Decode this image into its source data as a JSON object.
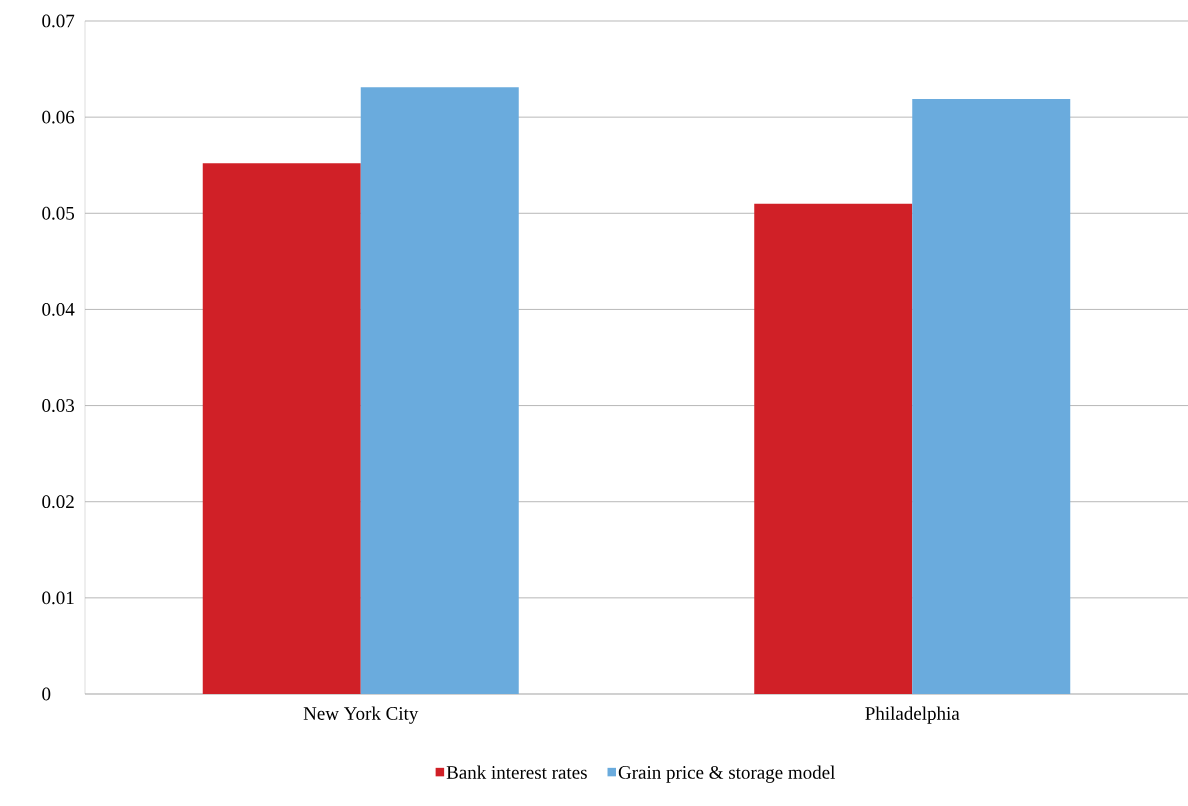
{
  "chart_data": {
    "type": "bar",
    "categories": [
      "New York City",
      "Philadelphia"
    ],
    "series": [
      {
        "name": "Bank interest rates",
        "color": "#d02027",
        "values": [
          0.0552,
          0.051
        ]
      },
      {
        "name": "Grain price & storage model",
        "color": "#6aabdd",
        "values": [
          0.0631,
          0.0619
        ]
      }
    ],
    "ylim": [
      0,
      0.07
    ],
    "yticks": [
      0,
      0.01,
      0.02,
      0.03,
      0.04,
      0.05,
      0.06,
      0.07
    ],
    "grid": "y",
    "legend": "bottom"
  }
}
